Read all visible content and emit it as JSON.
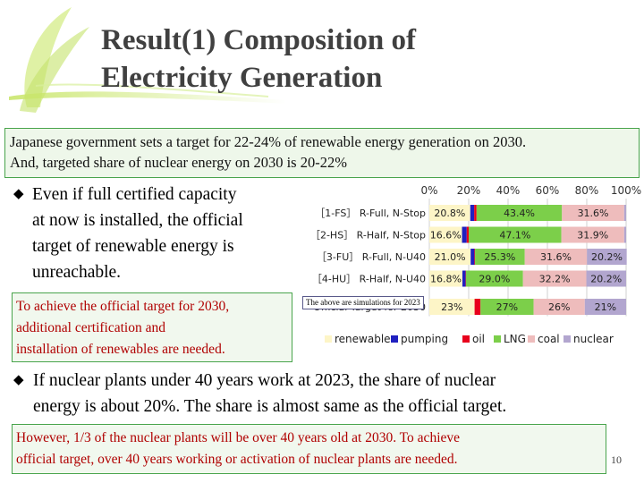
{
  "title": {
    "line1": "Result(1) Composition of",
    "line2": "Electricity Generation"
  },
  "gov_target": {
    "line1": "Japanese government sets a target for 22-24% of renewable energy generation on 2030.",
    "line2": "And, targeted share of  nuclear energy on 2030 is 20-22%"
  },
  "bullet1": {
    "mark": "◆",
    "lines": [
      "Even if full certified capacity",
      "at now is installed, the official",
      "target of renewable energy is",
      "unreachable."
    ]
  },
  "note1": {
    "line1": "To achieve the official target for 2030,",
    "line2": "additional certification and",
    "line3": "installation of  renewables are needed."
  },
  "bullet2": {
    "mark": "◆",
    "line1": "If nuclear plants under 40 years work at 2023, the share of  nuclear",
    "line2": "energy is about 20%.  The share is almost same as the official target."
  },
  "note2": {
    "line1": "However, 1/3 of  the nuclear plants will be over 40 years old at 2030. To achieve",
    "line2": "official target, over 40 years working or activation of nuclear plants are needed."
  },
  "page_number": "10",
  "chart_annotation": "The above are simulations for 2023",
  "colors": {
    "renewables": "#fdf5c7",
    "pumping": "#2020c0",
    "oil": "#e8001c",
    "LNG": "#7ccf4a",
    "coal": "#eebcbc",
    "nuclear": "#b2a6cf",
    "accent_green": "#49a44c"
  },
  "chart_data": {
    "type": "bar",
    "orientation": "horizontal",
    "stacked": true,
    "title": "",
    "xlabel": "",
    "ylabel": "",
    "xlim": [
      0,
      100
    ],
    "x_ticks": [
      "0%",
      "20%",
      "40%",
      "60%",
      "80%",
      "100%"
    ],
    "categories": [
      "[1-FS] R-Full, N-Stop",
      "[2-HS] R-Half, N-Stop",
      "[3-FU] R-Full, N-U40",
      "[4-HU] R-Half, N-U40",
      "Official Target for 2030"
    ],
    "category_labels": [
      "［1-FS］ R-Full, N-Stop",
      "［2-HS］ R-Half, N-Stop",
      "［3-FU］ R-Full, N-U40",
      "［4-HU］ R-Half, N-U40",
      "Official Target for 2030"
    ],
    "series": [
      {
        "name": "renewables",
        "values": [
          20.8,
          16.6,
          21.0,
          16.8,
          23
        ],
        "labels": [
          "20.8%",
          "16.6%",
          "21.0%",
          "16.8%",
          "23%"
        ]
      },
      {
        "name": "pumping",
        "values": [
          2.0,
          2.4,
          1.9,
          1.6,
          0
        ],
        "labels": [
          "",
          "",
          "",
          "",
          ""
        ]
      },
      {
        "name": "oil",
        "values": [
          1.2,
          1.0,
          0.3,
          0.2,
          3
        ],
        "labels": [
          "",
          "",
          "",
          "",
          ""
        ]
      },
      {
        "name": "LNG",
        "values": [
          43.4,
          47.1,
          25.3,
          29.0,
          27
        ],
        "labels": [
          "43.4%",
          "47.1%",
          "25.3%",
          "29.0%",
          "27%"
        ]
      },
      {
        "name": "coal",
        "values": [
          31.6,
          31.9,
          31.6,
          32.2,
          26
        ],
        "labels": [
          "31.6%",
          "31.9%",
          "31.6%",
          "32.2%",
          "26%"
        ]
      },
      {
        "name": "nuclear",
        "values": [
          1.0,
          1.0,
          20.2,
          20.2,
          21
        ],
        "labels": [
          "",
          "",
          "20.2%",
          "20.2%",
          "21%"
        ]
      }
    ],
    "legend": [
      "renewables",
      "pumping",
      "oil",
      "LNG",
      "coal",
      "nuclear"
    ],
    "legend_position": "bottom",
    "grid": true
  }
}
